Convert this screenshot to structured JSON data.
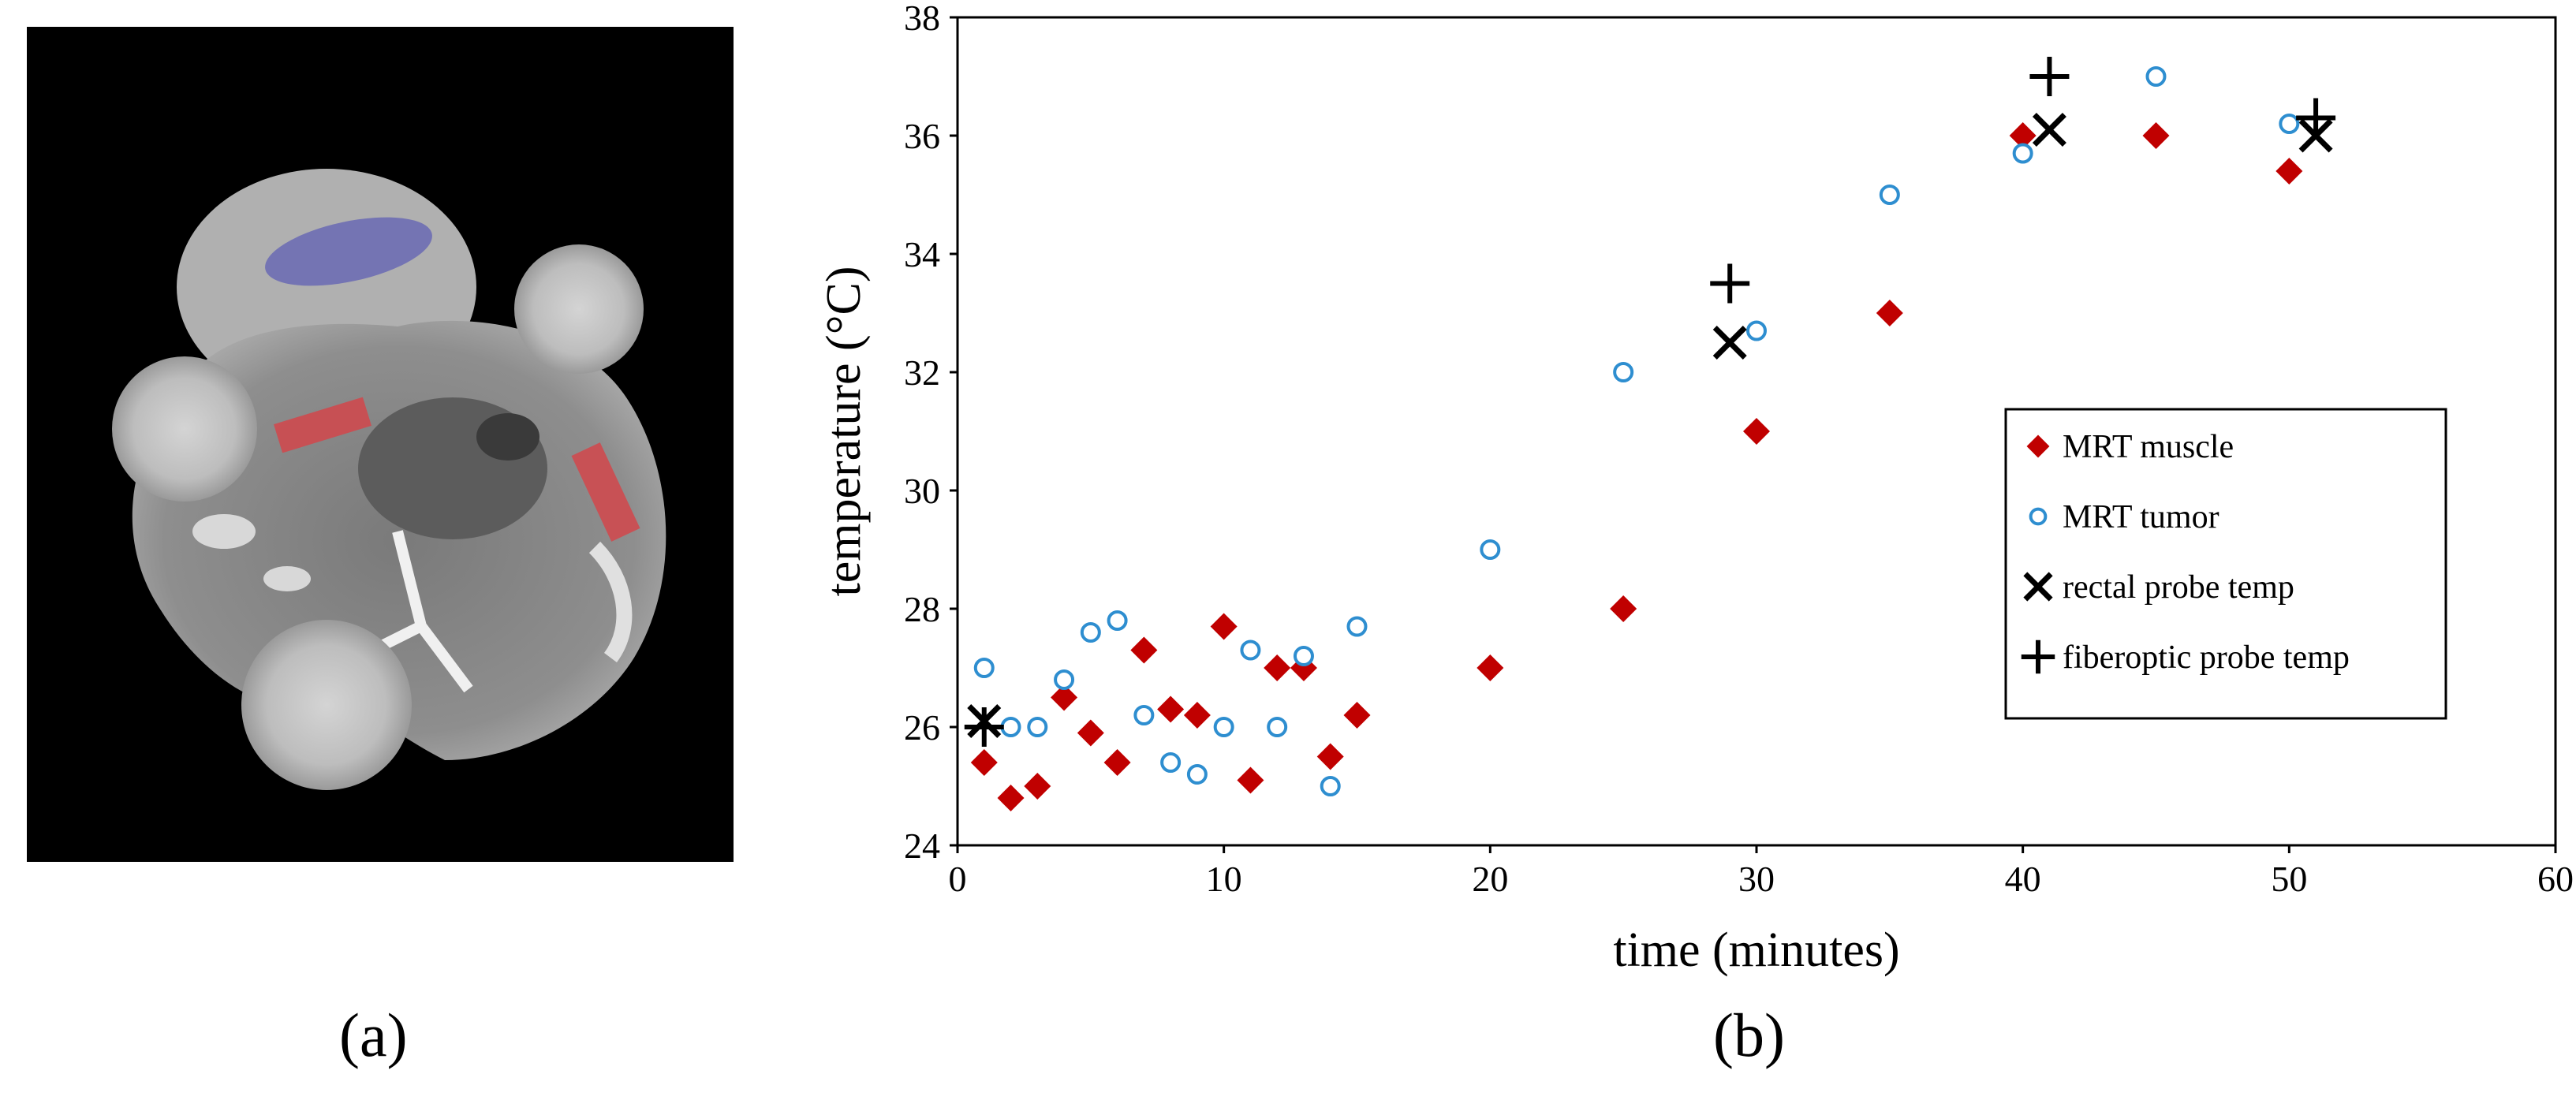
{
  "panels": {
    "a_label": "(a)",
    "b_label": "(b)"
  },
  "image_regions": {
    "blue_region_color": "#6a6ab4",
    "red_region_color": "#d2464b"
  },
  "chart_data": {
    "type": "scatter",
    "title": "",
    "xlabel": "time (minutes)",
    "ylabel": "temperature (°C)",
    "xlim": [
      0,
      60
    ],
    "ylim": [
      24,
      38
    ],
    "xticks": [
      0,
      10,
      20,
      30,
      40,
      50,
      60
    ],
    "yticks": [
      24,
      26,
      28,
      30,
      32,
      34,
      36,
      38
    ],
    "grid": false,
    "legend_position": "right",
    "series": [
      {
        "name": "MRT muscle",
        "marker": "diamond",
        "color": "#c00000",
        "points": [
          [
            1,
            25.4
          ],
          [
            2,
            24.8
          ],
          [
            3,
            25.0
          ],
          [
            4,
            26.5
          ],
          [
            5,
            25.9
          ],
          [
            6,
            25.4
          ],
          [
            7,
            27.3
          ],
          [
            8,
            26.3
          ],
          [
            9,
            26.2
          ],
          [
            10,
            27.7
          ],
          [
            11,
            25.1
          ],
          [
            12,
            27.0
          ],
          [
            13,
            27.0
          ],
          [
            14,
            25.5
          ],
          [
            15,
            26.2
          ],
          [
            20,
            27.0
          ],
          [
            25,
            28.0
          ],
          [
            30,
            31.0
          ],
          [
            35,
            33.0
          ],
          [
            40,
            36.0
          ],
          [
            45,
            36.0
          ],
          [
            50,
            35.4
          ]
        ]
      },
      {
        "name": "MRT tumor",
        "marker": "circle",
        "color": "#2e8ed0",
        "points": [
          [
            1,
            27.0
          ],
          [
            2,
            26.0
          ],
          [
            3,
            26.0
          ],
          [
            4,
            26.8
          ],
          [
            5,
            27.6
          ],
          [
            6,
            27.8
          ],
          [
            7,
            26.2
          ],
          [
            8,
            25.4
          ],
          [
            9,
            25.2
          ],
          [
            10,
            26.0
          ],
          [
            11,
            27.3
          ],
          [
            12,
            26.0
          ],
          [
            13,
            27.2
          ],
          [
            14,
            25.0
          ],
          [
            15,
            27.7
          ],
          [
            20,
            29.0
          ],
          [
            25,
            32.0
          ],
          [
            30,
            32.7
          ],
          [
            35,
            35.0
          ],
          [
            40,
            35.7
          ],
          [
            45,
            37.0
          ],
          [
            50,
            36.2
          ]
        ]
      },
      {
        "name": "rectal probe temp",
        "marker": "x",
        "color": "#000000",
        "points": [
          [
            1,
            26.1
          ],
          [
            29,
            32.5
          ],
          [
            41,
            36.1
          ],
          [
            51,
            36.0
          ]
        ]
      },
      {
        "name": "fiberoptic probe temp",
        "marker": "plus",
        "color": "#000000",
        "points": [
          [
            1,
            26.0
          ],
          [
            29,
            33.5
          ],
          [
            41,
            37.0
          ],
          [
            51,
            36.3
          ]
        ]
      }
    ]
  }
}
